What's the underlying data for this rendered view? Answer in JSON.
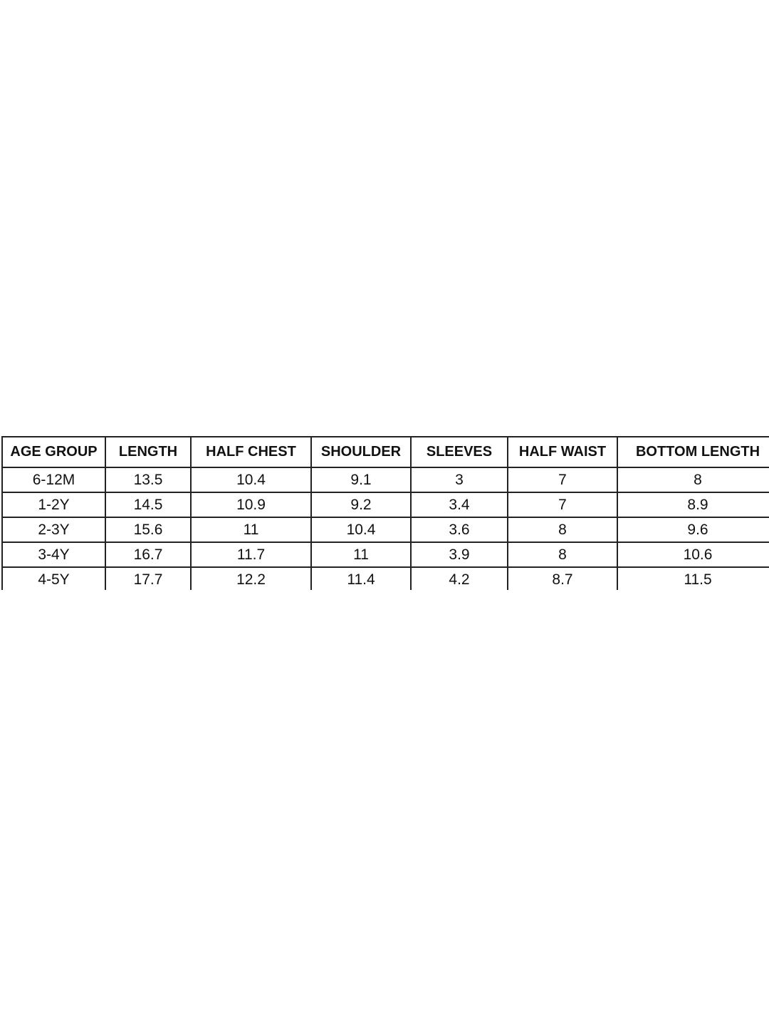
{
  "size_chart": {
    "headers": [
      "AGE GROUP",
      "LENGTH",
      "HALF CHEST",
      "SHOULDER",
      "SLEEVES",
      "HALF WAIST",
      "BOTTOM LENGTH"
    ],
    "rows": [
      [
        "6-12M",
        "13.5",
        "10.4",
        "9.1",
        "3",
        "7",
        "8"
      ],
      [
        "1-2Y",
        "14.5",
        "10.9",
        "9.2",
        "3.4",
        "7",
        "8.9"
      ],
      [
        "2-3Y",
        "15.6",
        "11",
        "10.4",
        "3.6",
        "8",
        "9.6"
      ],
      [
        "3-4Y",
        "16.7",
        "11.7",
        "11",
        "3.9",
        "8",
        "10.6"
      ],
      [
        "4-5Y",
        "17.7",
        "12.2",
        "11.4",
        "4.2",
        "8.7",
        "11.5"
      ]
    ]
  }
}
